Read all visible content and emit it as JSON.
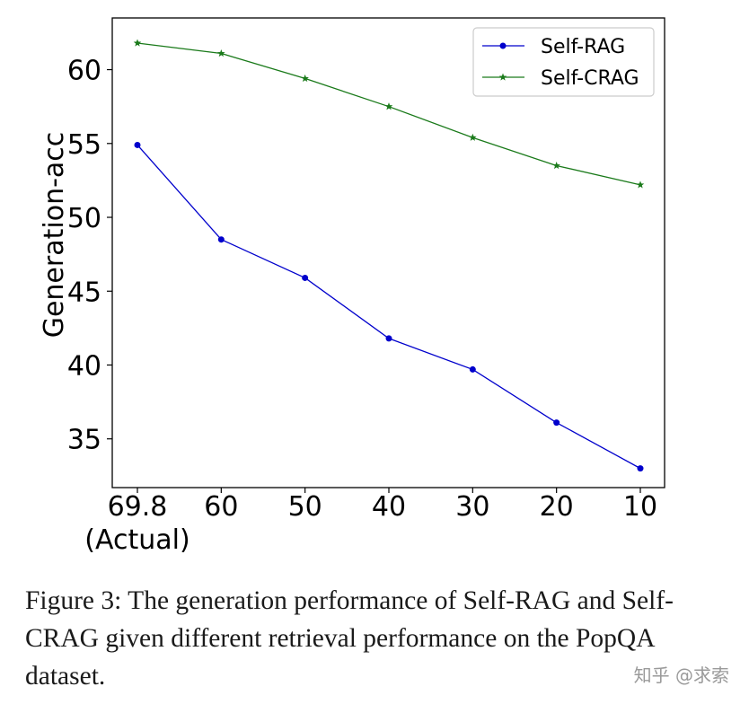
{
  "chart_data": {
    "type": "line",
    "title": "",
    "xlabel": "",
    "ylabel": "Generation-acc",
    "categories": [
      "69.8\n(Actual)",
      "60",
      "50",
      "40",
      "30",
      "20",
      "10"
    ],
    "yticks": [
      35,
      40,
      45,
      50,
      55,
      60
    ],
    "ylim": [
      31.7,
      63.5
    ],
    "grid": false,
    "legend_position": "top-right",
    "series": [
      {
        "name": "Self-RAG",
        "color": "#0000cc",
        "marker": "circle",
        "values": [
          54.9,
          48.5,
          45.9,
          41.8,
          39.7,
          36.1,
          33.0
        ]
      },
      {
        "name": "Self-CRAG",
        "color": "#1a7a1a",
        "marker": "star",
        "values": [
          61.8,
          61.1,
          59.4,
          57.5,
          55.4,
          53.5,
          52.2
        ]
      }
    ]
  },
  "caption": "Figure 3: The generation performance of Self-RAG and Self-CRAG given different retrieval performance on the PopQA dataset.",
  "watermark": "知乎 @求索"
}
